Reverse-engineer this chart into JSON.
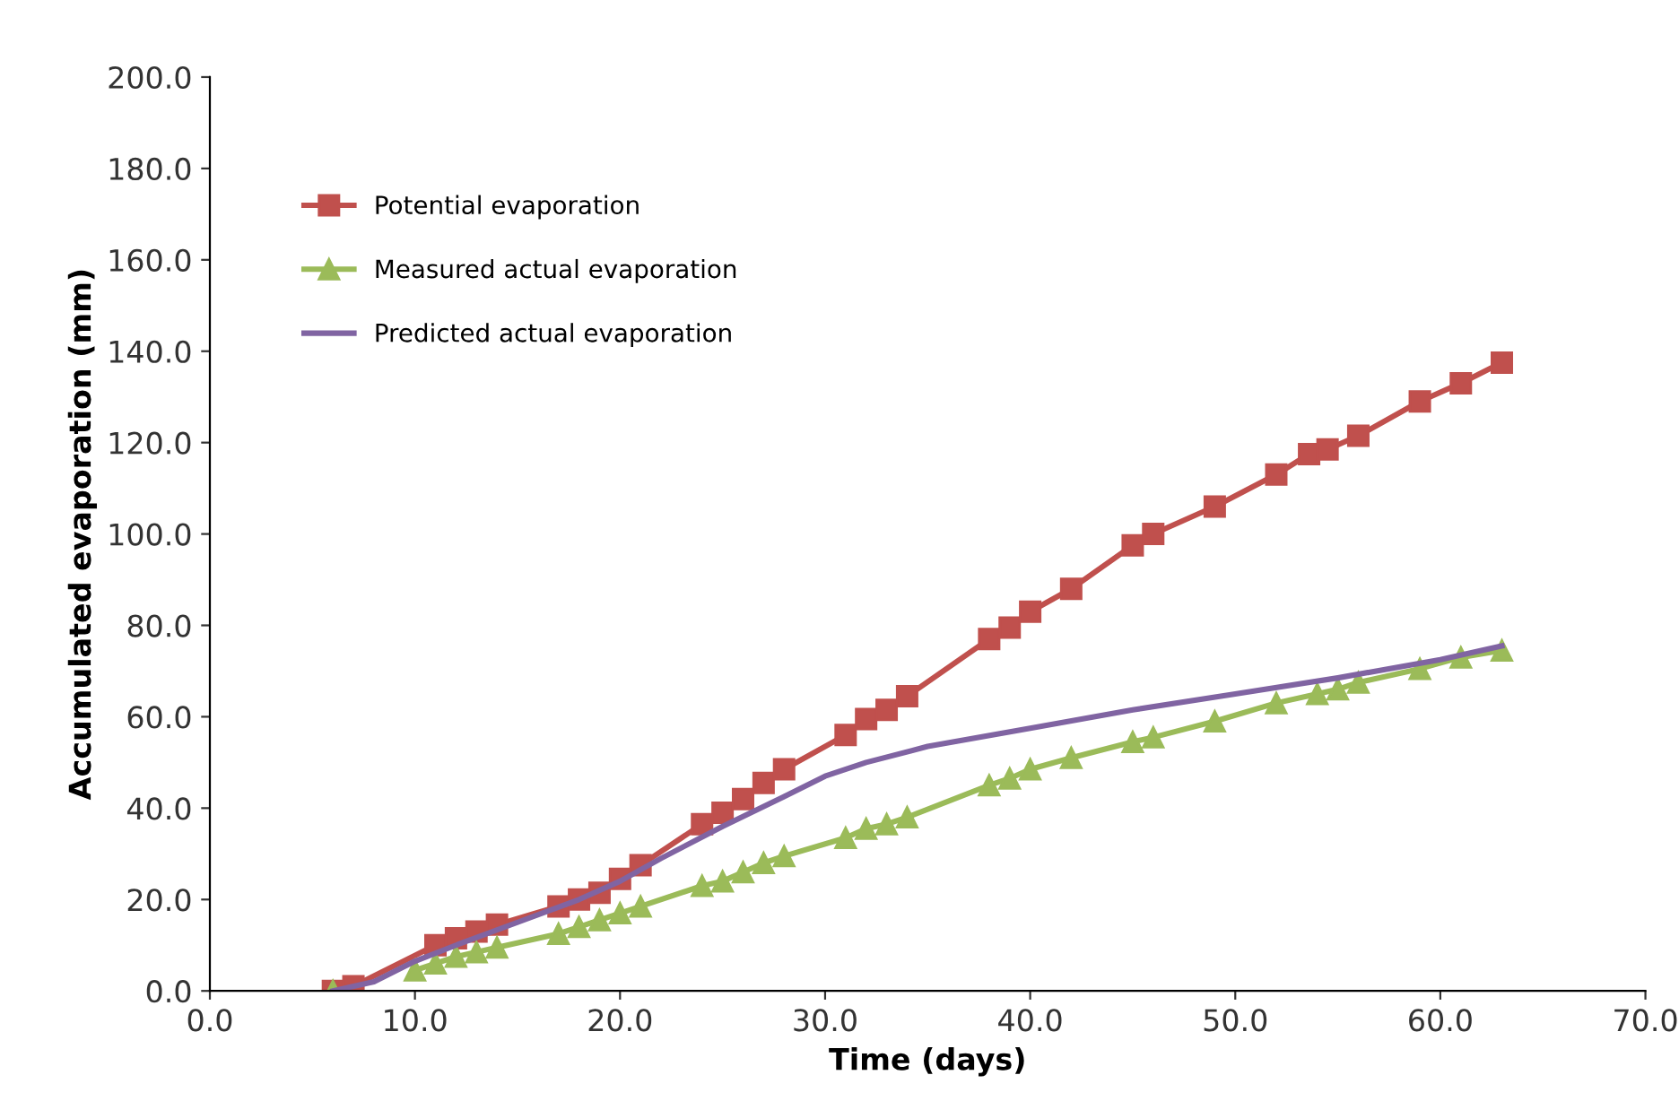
{
  "chart_data": {
    "type": "line",
    "xlabel": "Time (days)",
    "ylabel": "Accumulated evaporation (mm)",
    "xlim": [
      0,
      70
    ],
    "xticks": [
      {
        "value": 0,
        "label": "0.0"
      },
      {
        "value": 10,
        "label": "10.0"
      },
      {
        "value": 20,
        "label": "20.0"
      },
      {
        "value": 30,
        "label": "30.0"
      },
      {
        "value": 40,
        "label": "40.0"
      },
      {
        "value": 50,
        "label": "50.0"
      },
      {
        "value": 60,
        "label": "60.0"
      },
      {
        "value": 70,
        "label": "70.0"
      }
    ],
    "ylim": [
      0,
      200
    ],
    "yticks": [
      {
        "value": 0,
        "label": "0.0"
      },
      {
        "value": 20,
        "label": "20.0"
      },
      {
        "value": 40,
        "label": "40.0"
      },
      {
        "value": 60,
        "label": "60.0"
      },
      {
        "value": 80,
        "label": "80.0"
      },
      {
        "value": 100,
        "label": "100.0"
      },
      {
        "value": 120,
        "label": "120.0"
      },
      {
        "value": 140,
        "label": "140.0"
      },
      {
        "value": 160,
        "label": "160.0"
      },
      {
        "value": 180,
        "label": "180.0"
      },
      {
        "value": 200,
        "label": "200.0"
      }
    ],
    "grid": false,
    "legend": "top left",
    "series": [
      {
        "name": "Potential evaporation",
        "color": "#c0504d",
        "marker": "square",
        "x": [
          6,
          7,
          11,
          12,
          13,
          14,
          17,
          18,
          19,
          20,
          21,
          24,
          25,
          26,
          27,
          28,
          31,
          32,
          33,
          34,
          38,
          39,
          40,
          42,
          45,
          46,
          49,
          52,
          53.6,
          54.5,
          56,
          59,
          61,
          63
        ],
        "values": [
          0,
          1,
          10,
          11.5,
          13,
          14.5,
          18.5,
          20,
          21.5,
          24.5,
          27.5,
          36.5,
          39,
          42,
          45.5,
          48.5,
          56,
          59.5,
          61.5,
          64.5,
          77,
          79.5,
          83,
          88,
          97.5,
          100,
          106,
          113,
          117.5,
          118.5,
          121.5,
          129,
          133,
          137.5
        ]
      },
      {
        "name": "Measured actual evaporation",
        "color": "#9bbb59",
        "marker": "triangle",
        "x": [
          6,
          7,
          10,
          11,
          12,
          13,
          14,
          17,
          18,
          19,
          20,
          21,
          24,
          25,
          26,
          27,
          28,
          31,
          32,
          33,
          34,
          38,
          39,
          40,
          42,
          45,
          46,
          49,
          52,
          54,
          55,
          56,
          59,
          61,
          63
        ],
        "values": [
          0,
          null,
          4.5,
          6,
          7.5,
          8.5,
          9.5,
          12.5,
          14,
          15.5,
          17,
          18.5,
          23,
          24,
          26,
          28,
          29.5,
          33.5,
          35.5,
          36.5,
          38,
          45,
          46.5,
          48.5,
          51,
          54.5,
          55.5,
          59,
          63,
          65,
          66,
          67.5,
          70.5,
          73,
          74.5
        ]
      },
      {
        "name": "Predicted actual evaporation",
        "color": "#8064a2",
        "marker": "none",
        "x": [
          6,
          8,
          10,
          12,
          15,
          18,
          20,
          22,
          25,
          28,
          30,
          32,
          35,
          40,
          45,
          50,
          55,
          60,
          63
        ],
        "values": [
          0,
          2,
          6.5,
          10,
          15,
          20,
          24,
          29,
          36,
          42.5,
          47,
          50,
          53.5,
          57.5,
          61.5,
          65,
          68.5,
          72.5,
          75.5
        ]
      }
    ]
  }
}
